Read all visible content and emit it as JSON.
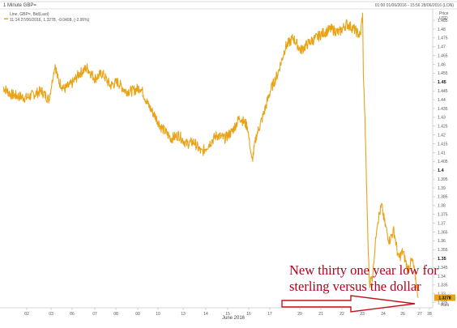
{
  "header": {
    "title": "1 Minute GBP=",
    "range": "01:00 01/06/2016 - 15:56 28/06/2016 (LON)",
    "legend_line1": "Line, GBP=, Bid(Last)",
    "legend_line2": "11:14 27/06/2016, 1.3278, -0.0408, (-2.95%)",
    "price_label": "Price",
    "currency_label": "USD"
  },
  "annotation": {
    "line1": "New thirty one year low for",
    "line2": "sterling versus the dollar"
  },
  "colors": {
    "series": "#e8a317",
    "arrow": "#c0141c",
    "annotation": "#b3001b",
    "last_tag": "#e8a317"
  },
  "chart_data": {
    "type": "line",
    "title": "1 Minute GBP=",
    "xlabel": "June 2016",
    "ylabel": "Price USD",
    "ylim": [
      1.323,
      1.491
    ],
    "x_ticks": [
      "02",
      "03",
      "06",
      "07",
      "08",
      "09",
      "10",
      "13",
      "14",
      "15",
      "16",
      "17",
      "20",
      "21",
      "22",
      "23",
      "24",
      "26",
      "27",
      "28"
    ],
    "x_labels_position_note": "evenly spaced trading days",
    "y_ticks": [
      1.325,
      1.33,
      1.335,
      1.34,
      1.345,
      1.35,
      1.355,
      1.36,
      1.365,
      1.37,
      1.375,
      1.38,
      1.385,
      1.39,
      1.395,
      1.4,
      1.405,
      1.41,
      1.415,
      1.42,
      1.425,
      1.43,
      1.435,
      1.44,
      1.445,
      1.45,
      1.455,
      1.46,
      1.465,
      1.47,
      1.475,
      1.48,
      1.485
    ],
    "y_tick_labels": [
      "1.325",
      "1.33",
      "1.335",
      "1.34",
      "1.345",
      "1.35",
      "1.355",
      "1.36",
      "1.365",
      "1.37",
      "1.375",
      "1.38",
      "1.385",
      "1.39",
      "1.395",
      "1.4",
      "1.405",
      "1.41",
      "1.415",
      "1.42",
      "1.425",
      "1.43",
      "1.435",
      "1.44",
      "1.445",
      "1.45",
      "1.455",
      "1.46",
      "1.465",
      "1.47",
      "1.475",
      "1.48",
      "1.485"
    ],
    "bold_ticks": [
      "1.45",
      "1.4",
      "1.35"
    ],
    "last_value_label": "1.3278",
    "last_value": 1.3278,
    "extra_axis_label": "Auto",
    "series": [
      {
        "x": [
          0.0,
          0.5,
          1.0,
          1.5,
          2.0,
          2.5,
          3.0,
          3.4,
          3.6,
          4.0,
          4.5,
          5.0,
          5.5,
          6.0,
          6.5,
          7.0,
          7.5,
          8.0,
          8.5,
          9.0,
          9.5,
          10.0,
          10.3,
          10.6,
          11.0,
          11.5,
          12.0,
          12.5,
          13.0,
          13.5,
          14.0,
          14.5,
          15.0,
          15.5,
          16.0,
          16.3,
          16.6,
          17.0,
          17.5,
          18.0,
          18.5,
          19.0,
          19.5,
          20.0,
          20.5,
          21.0,
          21.5,
          22.0,
          22.5,
          23.0,
          23.2,
          23.4,
          23.5,
          23.55,
          23.6,
          23.7,
          23.8,
          23.9,
          24.0,
          24.2,
          24.5,
          24.8,
          25.0,
          25.3,
          25.6,
          25.9,
          26.2,
          26.5,
          26.8,
          27.0,
          27.2
        ],
        "y": [
          1.447,
          1.443,
          1.442,
          1.441,
          1.443,
          1.445,
          1.44,
          1.46,
          1.451,
          1.446,
          1.449,
          1.455,
          1.458,
          1.452,
          1.455,
          1.448,
          1.45,
          1.445,
          1.445,
          1.447,
          1.437,
          1.43,
          1.425,
          1.422,
          1.418,
          1.42,
          1.415,
          1.416,
          1.41,
          1.415,
          1.42,
          1.418,
          1.422,
          1.43,
          1.425,
          1.405,
          1.42,
          1.43,
          1.445,
          1.455,
          1.47,
          1.475,
          1.468,
          1.472,
          1.475,
          1.478,
          1.48,
          1.478,
          1.483,
          1.48,
          1.478,
          1.476,
          1.485,
          1.488,
          1.455,
          1.43,
          1.395,
          1.36,
          1.336,
          1.34,
          1.37,
          1.38,
          1.37,
          1.36,
          1.366,
          1.35,
          1.354,
          1.344,
          1.349,
          1.34,
          1.3278
        ]
      }
    ],
    "grid": false
  }
}
